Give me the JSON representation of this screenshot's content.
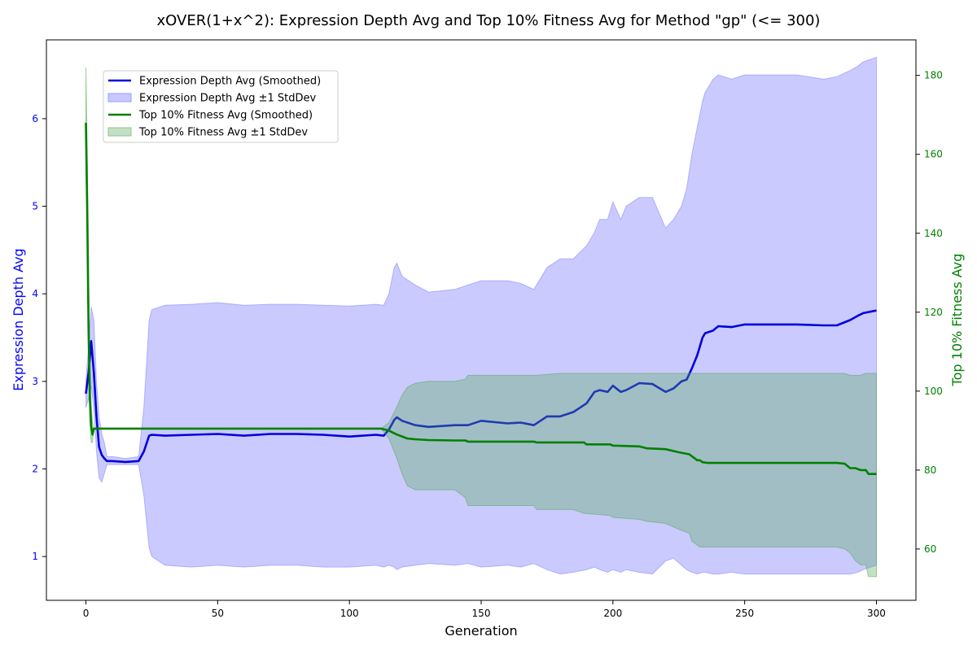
{
  "chart_data": {
    "type": "line",
    "title": "xOVER(1+x^2): Expression Depth Avg and Top 10% Fitness Avg for Method \"gp\" (<= 300)",
    "xlabel": "Generation",
    "ylabel_left": "Expression Depth Avg",
    "ylabel_right": "Top 10% Fitness Avg",
    "xlim": [
      -15,
      315
    ],
    "ylim_left": [
      0.5,
      6.9
    ],
    "ylim_right": [
      47,
      189
    ],
    "x_ticks": [
      0,
      50,
      100,
      150,
      200,
      250,
      300
    ],
    "y_ticks_left": [
      1,
      2,
      3,
      4,
      5,
      6
    ],
    "y_ticks_right": [
      60,
      80,
      100,
      120,
      140,
      160,
      180
    ],
    "grid": false,
    "legend_position": "top-left",
    "colors": {
      "depth_line": "#0000dd",
      "depth_band": "#7b7bff",
      "fitness_line": "#008000",
      "fitness_band": "#5aa85a",
      "left_axis": "#0000ff",
      "right_axis": "#008000"
    },
    "legend": [
      {
        "label": "Expression Depth Avg (Smoothed)",
        "kind": "line",
        "color": "#0000dd"
      },
      {
        "label": "Expression Depth Avg ±1 StdDev",
        "kind": "band",
        "color": "#c8c8ff",
        "border": "#9b9bff"
      },
      {
        "label": "Top 10% Fitness Avg (Smoothed)",
        "kind": "line",
        "color": "#008000"
      },
      {
        "label": "Top 10% Fitness Avg ±1 StdDev",
        "kind": "band",
        "color": "#c4e0c4",
        "border": "#8fc28f"
      }
    ],
    "series": [
      {
        "name": "Expression Depth Avg (Smoothed)",
        "axis": "left",
        "x": [
          0,
          1,
          2,
          3,
          4,
          5,
          6,
          7,
          8,
          10,
          15,
          20,
          22,
          24,
          25,
          30,
          40,
          50,
          60,
          70,
          80,
          90,
          100,
          110,
          113,
          115,
          117,
          118,
          120,
          125,
          130,
          140,
          145,
          150,
          160,
          165,
          170,
          175,
          180,
          185,
          190,
          193,
          195,
          198,
          200,
          203,
          205,
          210,
          215,
          220,
          223,
          226,
          228,
          230,
          232,
          234,
          235,
          238,
          240,
          245,
          250,
          260,
          270,
          280,
          285,
          290,
          293,
          295,
          300
        ],
        "values": [
          2.86,
          3.1,
          3.46,
          3.1,
          2.6,
          2.25,
          2.16,
          2.12,
          2.09,
          2.09,
          2.08,
          2.09,
          2.2,
          2.38,
          2.39,
          2.38,
          2.39,
          2.4,
          2.38,
          2.4,
          2.4,
          2.39,
          2.37,
          2.39,
          2.38,
          2.45,
          2.56,
          2.59,
          2.55,
          2.5,
          2.48,
          2.5,
          2.5,
          2.55,
          2.52,
          2.53,
          2.5,
          2.6,
          2.6,
          2.65,
          2.75,
          2.88,
          2.9,
          2.88,
          2.95,
          2.88,
          2.9,
          2.98,
          2.97,
          2.88,
          2.92,
          3.0,
          3.02,
          3.15,
          3.3,
          3.5,
          3.55,
          3.58,
          3.63,
          3.62,
          3.65,
          3.65,
          3.65,
          3.64,
          3.64,
          3.7,
          3.75,
          3.78,
          3.81
        ],
        "band_lower": [
          2.7,
          2.8,
          2.95,
          2.7,
          2.2,
          1.9,
          1.85,
          1.95,
          2.05,
          2.05,
          2.05,
          2.05,
          1.7,
          1.1,
          1.0,
          0.9,
          0.88,
          0.9,
          0.88,
          0.9,
          0.9,
          0.88,
          0.88,
          0.9,
          0.88,
          0.9,
          0.88,
          0.85,
          0.88,
          0.9,
          0.92,
          0.9,
          0.92,
          0.88,
          0.9,
          0.88,
          0.92,
          0.85,
          0.8,
          0.82,
          0.85,
          0.88,
          0.85,
          0.82,
          0.85,
          0.82,
          0.85,
          0.82,
          0.8,
          0.95,
          0.98,
          0.9,
          0.85,
          0.82,
          0.8,
          0.82,
          0.82,
          0.8,
          0.8,
          0.82,
          0.8,
          0.8,
          0.8,
          0.8,
          0.8,
          0.8,
          0.82,
          0.85,
          0.9
        ],
        "band_upper": [
          3.0,
          3.4,
          3.85,
          3.7,
          3.0,
          2.6,
          2.4,
          2.3,
          2.14,
          2.14,
          2.12,
          2.14,
          2.7,
          3.7,
          3.82,
          3.87,
          3.88,
          3.9,
          3.87,
          3.88,
          3.88,
          3.87,
          3.86,
          3.88,
          3.87,
          4.0,
          4.3,
          4.35,
          4.2,
          4.1,
          4.02,
          4.05,
          4.1,
          4.15,
          4.15,
          4.12,
          4.05,
          4.3,
          4.4,
          4.4,
          4.55,
          4.7,
          4.85,
          4.85,
          5.05,
          4.85,
          5.0,
          5.1,
          5.1,
          4.75,
          4.85,
          5.0,
          5.2,
          5.6,
          5.9,
          6.2,
          6.3,
          6.45,
          6.5,
          6.45,
          6.5,
          6.5,
          6.5,
          6.45,
          6.48,
          6.55,
          6.6,
          6.65,
          6.7
        ]
      },
      {
        "name": "Top 10% Fitness Avg (Smoothed)",
        "axis": "right",
        "x": [
          0,
          0.5,
          1,
          1.5,
          2,
          2.5,
          3,
          4,
          10,
          50,
          100,
          112,
          115,
          118,
          120,
          122,
          125,
          130,
          140,
          144,
          145,
          150,
          160,
          170,
          171,
          180,
          185,
          189,
          190,
          199,
          200,
          210,
          213,
          220,
          225,
          229,
          230,
          232,
          233,
          234,
          236,
          240,
          250,
          260,
          270,
          280,
          285,
          288,
          290,
          292,
          294,
          296,
          297,
          300
        ],
        "values": [
          168,
          145,
          115,
          98,
          91,
          89,
          90.5,
          90.5,
          90.5,
          90.5,
          90.5,
          90.5,
          90,
          89,
          88.5,
          88,
          87.8,
          87.6,
          87.5,
          87.5,
          87.2,
          87.2,
          87.2,
          87.2,
          87,
          87,
          87,
          87,
          86.5,
          86.5,
          86.2,
          86,
          85.5,
          85.3,
          84.5,
          84,
          83.5,
          82.5,
          82.5,
          82,
          81.8,
          81.8,
          81.8,
          81.8,
          81.8,
          81.8,
          81.8,
          81.6,
          80.5,
          80.5,
          80,
          80,
          79,
          79
        ],
        "band_lower": [
          158,
          135,
          108,
          92,
          87,
          87,
          90.5,
          90.5,
          90.5,
          90.5,
          90.5,
          90.5,
          88,
          83,
          79,
          76,
          75,
          75,
          75,
          73,
          71,
          71,
          71,
          71,
          70,
          70,
          70,
          69,
          69,
          68.5,
          68,
          67.5,
          67,
          66.5,
          65,
          64,
          62,
          61,
          60.5,
          60.5,
          60.5,
          60.5,
          60.5,
          60.5,
          60.5,
          60.5,
          60.5,
          60,
          59,
          57,
          56,
          56,
          53,
          53
        ],
        "band_upper": [
          182,
          160,
          128,
          108,
          97,
          92,
          90.5,
          90.5,
          90.5,
          90.5,
          90.5,
          90.5,
          92,
          96,
          99,
          101,
          102,
          102.5,
          102.5,
          103,
          104,
          104,
          104,
          104,
          104,
          104.5,
          104.5,
          104.5,
          104.5,
          104.5,
          104.5,
          104.5,
          104.5,
          104.5,
          104.5,
          104.5,
          104.5,
          104.5,
          104.5,
          104.5,
          104.5,
          104.5,
          104.5,
          104.5,
          104.5,
          104.5,
          104.5,
          104.5,
          104,
          104,
          104,
          104.5,
          104.5,
          104.5
        ]
      }
    ]
  }
}
